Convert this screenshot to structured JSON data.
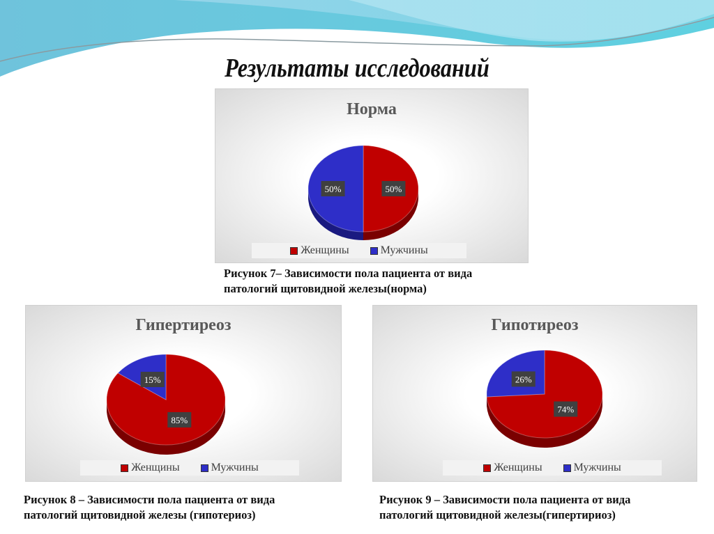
{
  "slide_title": "Результаты исследований",
  "colors": {
    "women": "#c00000",
    "men": "#2e2ec8",
    "label_bg": "#404040"
  },
  "chart_data": [
    {
      "type": "pie",
      "title": "Норма",
      "categories": [
        "Женщины",
        "Мужчины"
      ],
      "values": [
        50,
        50
      ],
      "data_labels": [
        "50%",
        "50%"
      ],
      "legend": [
        "Женщины",
        "Мужчины"
      ],
      "legend_position": "bottom",
      "style": "3d"
    },
    {
      "type": "pie",
      "title": "Гипертиреоз",
      "categories": [
        "Женщины",
        "Мужчины"
      ],
      "values": [
        85,
        15
      ],
      "data_labels": [
        "85%",
        "15%"
      ],
      "legend": [
        "Женщины",
        "Мужчины"
      ],
      "legend_position": "bottom",
      "style": "3d"
    },
    {
      "type": "pie",
      "title": "Гипотиреоз",
      "categories": [
        "Женщины",
        "Мужчины"
      ],
      "values": [
        74,
        26
      ],
      "data_labels": [
        "74%",
        "26%"
      ],
      "legend": [
        "Женщины",
        "Мужчины"
      ],
      "legend_position": "bottom",
      "style": "3d"
    }
  ],
  "captions": [
    {
      "line1": "Рисунок 7– Зависимости пола пациента от вида",
      "line2": "патологий щитовидной железы(норма)"
    },
    {
      "line1": "Рисунок 8 – Зависимости пола пациента от вида",
      "line2": "патологий щитовидной железы (гипотериоз)"
    },
    {
      "line1": "Рисунок 9 – Зависимости пола пациента от вида",
      "line2": "патологий щитовидной железы(гипертириоз)"
    }
  ]
}
